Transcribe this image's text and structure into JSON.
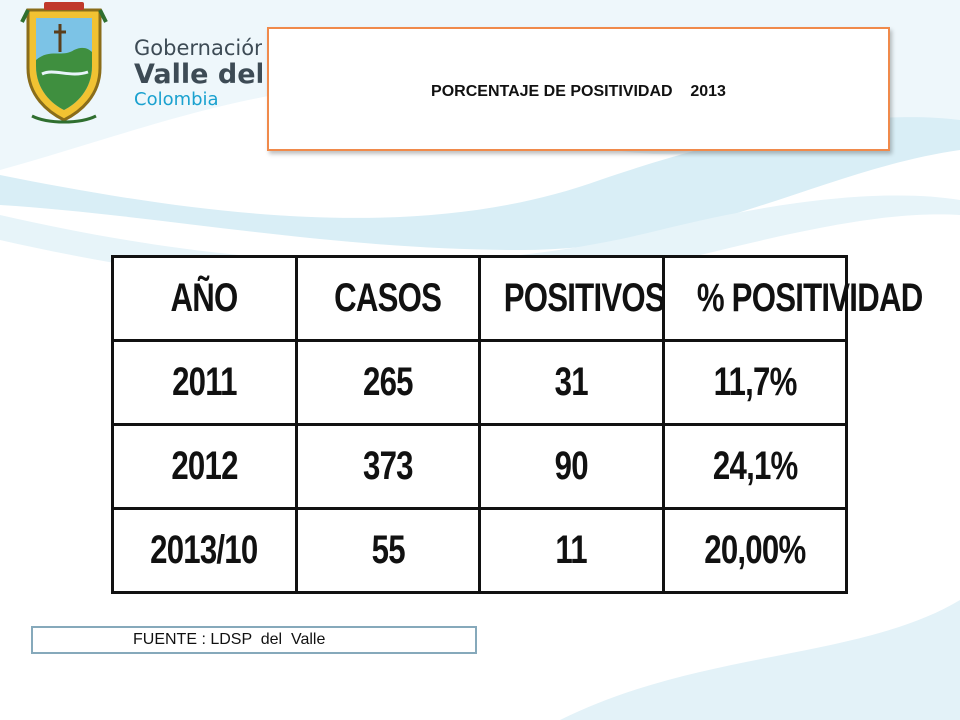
{
  "logo": {
    "line1": "Gobernación",
    "line2": "Valle del Cauca",
    "line3": "Colombia",
    "icon": "coat-of-arms-emblem"
  },
  "title": "PORCENTAJE DE POSITIVIDAD    2013",
  "table": {
    "headers": [
      "AÑO",
      "CASOS",
      "POSITIVOS",
      "% POSITIVIDAD"
    ],
    "rows": [
      [
        "2011",
        "265",
        "31",
        "11,7%"
      ],
      [
        "2012",
        "373",
        "90",
        "24,1%"
      ],
      [
        "2013/10",
        "55",
        "11",
        "20,00%"
      ]
    ]
  },
  "source": "FUENTE : LDSP  del  Valle",
  "colors": {
    "title_border": "#f08a4b",
    "wave": "#cfe8f2",
    "source_border": "#86a9bb",
    "logo_text": "#3d4b55",
    "logo_accent": "#1aa1cf"
  }
}
